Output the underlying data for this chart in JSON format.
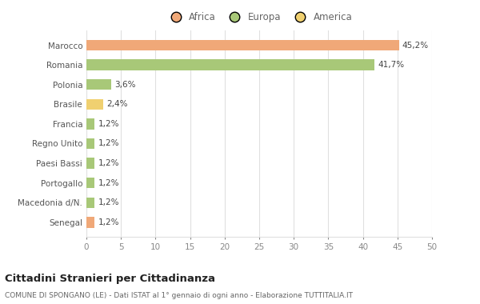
{
  "categories": [
    "Senegal",
    "Macedonia d/N.",
    "Portogallo",
    "Paesi Bassi",
    "Regno Unito",
    "Francia",
    "Brasile",
    "Polonia",
    "Romania",
    "Marocco"
  ],
  "values": [
    1.2,
    1.2,
    1.2,
    1.2,
    1.2,
    1.2,
    2.4,
    3.6,
    41.7,
    45.2
  ],
  "colors": [
    "#f0a878",
    "#a8c878",
    "#a8c878",
    "#a8c878",
    "#a8c878",
    "#a8c878",
    "#f0d070",
    "#a8c878",
    "#a8c878",
    "#f0a878"
  ],
  "labels": [
    "1,2%",
    "1,2%",
    "1,2%",
    "1,2%",
    "1,2%",
    "1,2%",
    "2,4%",
    "3,6%",
    "41,7%",
    "45,2%"
  ],
  "legend_labels": [
    "Africa",
    "Europa",
    "America"
  ],
  "legend_colors": [
    "#f0a878",
    "#a8c878",
    "#f0d070"
  ],
  "title": "Cittadini Stranieri per Cittadinanza",
  "subtitle": "COMUNE DI SPONGANO (LE) - Dati ISTAT al 1° gennaio di ogni anno - Elaborazione TUTTITALIA.IT",
  "xlim": [
    0,
    50
  ],
  "xticks": [
    0,
    5,
    10,
    15,
    20,
    25,
    30,
    35,
    40,
    45,
    50
  ],
  "background_color": "#ffffff",
  "grid_color": "#e0e0e0",
  "bar_height": 0.55,
  "label_fontsize": 7.5,
  "tick_fontsize": 7.5,
  "legend_fontsize": 8.5,
  "title_fontsize": 9.5,
  "subtitle_fontsize": 6.5
}
